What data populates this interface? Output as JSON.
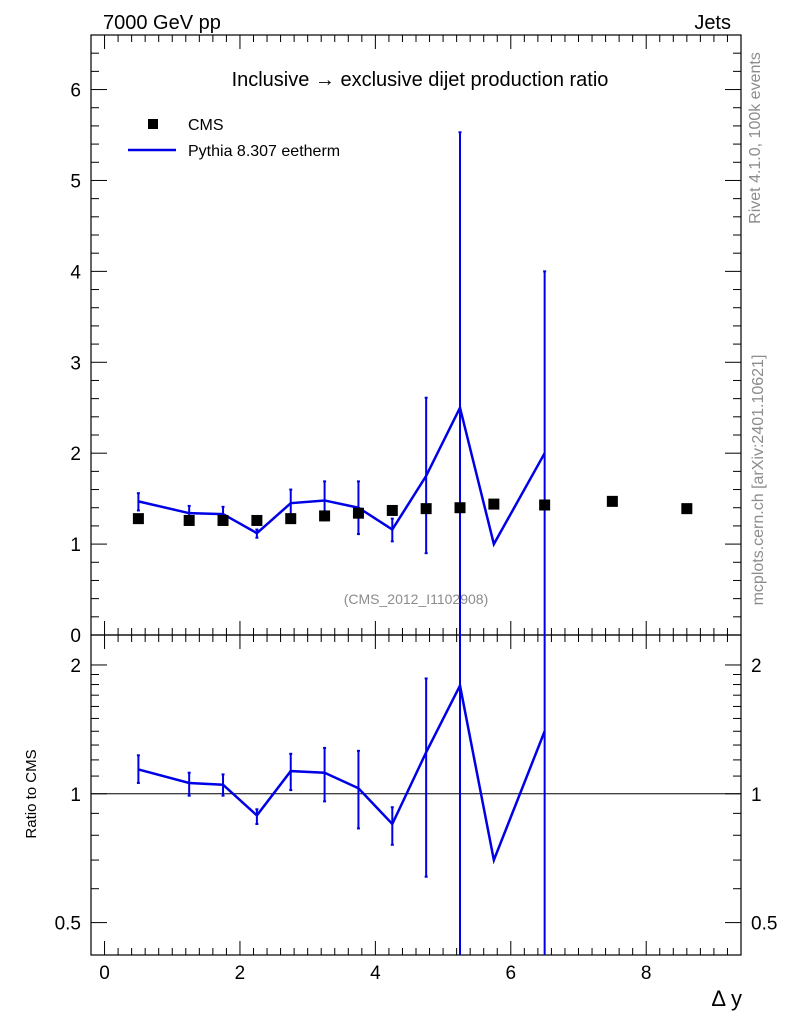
{
  "header": {
    "left": "7000 GeV pp",
    "right": "Jets",
    "side_top": "Rivet 4.1.0,  100k events",
    "side_bottom": "mcplots.cern.ch [arXiv:2401.10621]"
  },
  "colors": {
    "data": "#000000",
    "mc": "#0000e6",
    "watermark": "#8c8c8c",
    "side_text": "#8c8c8c"
  },
  "chart_data": [
    {
      "type": "line",
      "panel": "main",
      "title": "Inclusive → exclusive dijet production ratio",
      "watermark": "(CMS_2012_I1102908)",
      "xlabel": "Δ y",
      "ylabel": "",
      "xlim": [
        -0.2,
        9.4
      ],
      "ylim": [
        0,
        6.6
      ],
      "x_ticks": [
        0,
        2,
        4,
        6,
        8
      ],
      "y_ticks": [
        0,
        1,
        2,
        3,
        4,
        5,
        6
      ],
      "x_tick_labels": [
        "0",
        "2",
        "4",
        "6",
        "8"
      ],
      "y_tick_labels": [
        "0",
        "1",
        "2",
        "3",
        "4",
        "5",
        "6"
      ],
      "legend_position": "top-left",
      "series": [
        {
          "name": "CMS",
          "style": "markers",
          "x": [
            0.5,
            1.25,
            1.75,
            2.25,
            2.75,
            3.25,
            3.75,
            4.25,
            4.75,
            5.25,
            5.75,
            6.5,
            7.5,
            8.6
          ],
          "y": [
            1.28,
            1.26,
            1.26,
            1.26,
            1.28,
            1.31,
            1.34,
            1.37,
            1.39,
            1.4,
            1.44,
            1.43,
            1.47,
            1.39
          ]
        },
        {
          "name": "Pythia 8.307 eetherm",
          "style": "line-errorbars",
          "x": [
            0.5,
            1.25,
            1.75,
            2.25,
            2.75,
            3.25,
            3.75,
            4.25,
            4.75,
            5.25,
            5.75,
            6.5
          ],
          "y": [
            1.47,
            1.34,
            1.33,
            1.12,
            1.45,
            1.48,
            1.4,
            1.16,
            1.75,
            2.5,
            1.0,
            2.0
          ],
          "err_low": [
            1.37,
            1.25,
            1.25,
            1.07,
            1.33,
            1.26,
            1.11,
            1.03,
            0.9,
            0.0,
            null,
            0.0
          ],
          "err_high": [
            1.56,
            1.42,
            1.41,
            1.16,
            1.6,
            1.69,
            1.69,
            1.28,
            2.61,
            5.53,
            null,
            4.0
          ]
        }
      ]
    },
    {
      "type": "line",
      "panel": "ratio",
      "ylabel": "Ratio to CMS",
      "xlabel": "Δ y",
      "xlim": [
        -0.2,
        9.4
      ],
      "ylim": [
        0.42,
        2.35
      ],
      "log_y": true,
      "y_ticks": [
        0.5,
        1,
        2
      ],
      "y_tick_labels": [
        "0.5",
        "1",
        "2"
      ],
      "x_ticks": [
        0,
        2,
        4,
        6,
        8
      ],
      "x_tick_labels": [
        "0",
        "2",
        "4",
        "6",
        "8"
      ],
      "reference_line": 1,
      "series": [
        {
          "name": "Pythia 8.307 eetherm",
          "style": "line-errorbars",
          "x": [
            0.5,
            1.25,
            1.75,
            2.25,
            2.75,
            3.25,
            3.75,
            4.25,
            4.75,
            5.25,
            5.75,
            6.5
          ],
          "y": [
            1.14,
            1.06,
            1.05,
            0.89,
            1.13,
            1.12,
            1.03,
            0.85,
            1.25,
            1.79,
            0.7,
            1.4
          ],
          "err_low": [
            1.06,
            0.99,
            0.99,
            0.85,
            1.02,
            0.96,
            0.83,
            0.76,
            0.64,
            0.0,
            null,
            0.0
          ],
          "err_high": [
            1.23,
            1.12,
            1.11,
            0.92,
            1.24,
            1.28,
            1.26,
            0.93,
            1.86,
            4.0,
            null,
            4.0
          ]
        }
      ]
    }
  ]
}
